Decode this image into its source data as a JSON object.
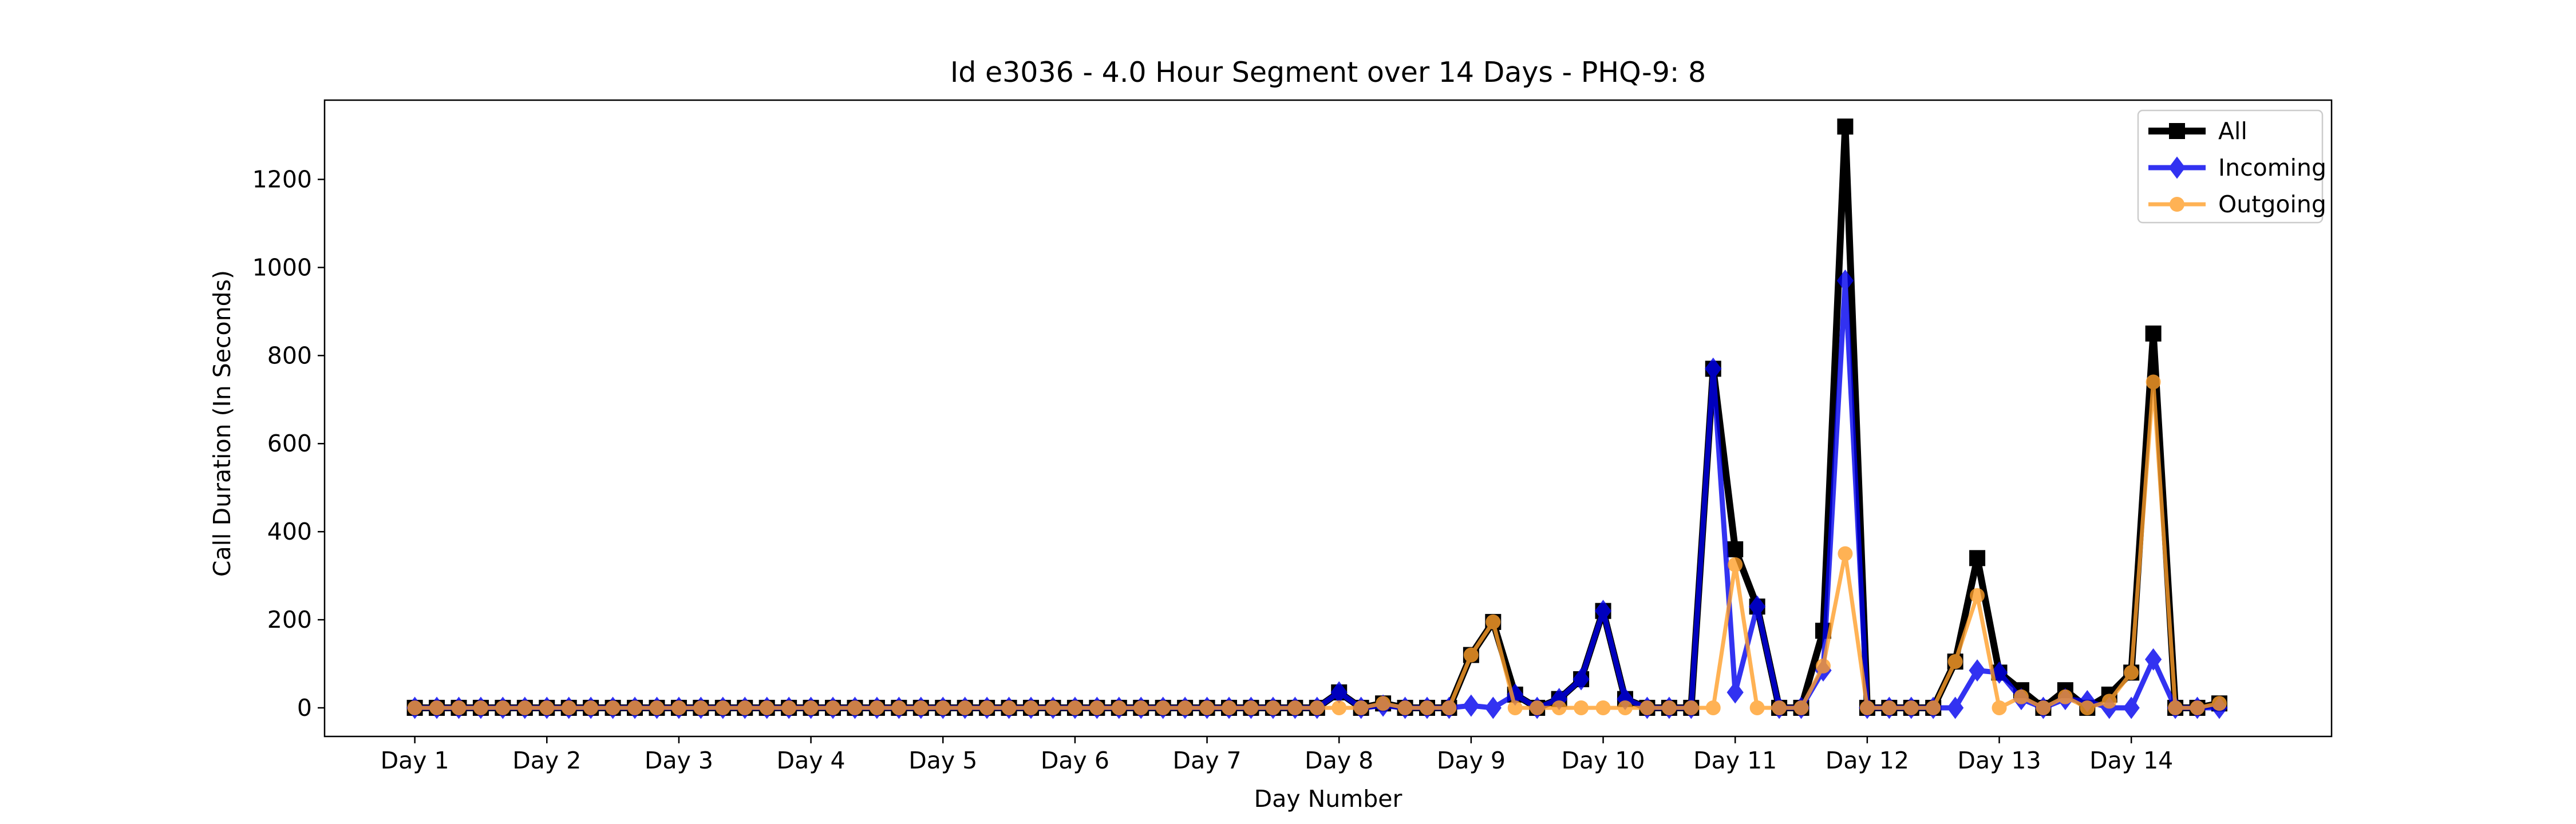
{
  "chart_data": {
    "type": "line",
    "title": "Id e3036 - 4.0 Hour Segment over 14 Days - PHQ-9: 8",
    "xlabel": "Day Number",
    "ylabel": "Call Duration (In Seconds)",
    "x_tick_labels": [
      "Day 1",
      "Day 2",
      "Day 3",
      "Day 4",
      "Day 5",
      "Day 6",
      "Day 7",
      "Day 8",
      "Day 9",
      "Day 10",
      "Day 11",
      "Day 12",
      "Day 13",
      "Day 14"
    ],
    "x_tick_positions": [
      0,
      6,
      12,
      18,
      24,
      30,
      36,
      42,
      48,
      54,
      60,
      66,
      72,
      78
    ],
    "y_ticks": [
      0,
      200,
      400,
      600,
      800,
      1000,
      1200
    ],
    "xlim": [
      -4.1,
      87.1
    ],
    "ylim": [
      -65,
      1380
    ],
    "grid": false,
    "legend_position": "top-right",
    "series": [
      {
        "name": "All",
        "color": "#000000",
        "marker": "square",
        "values": [
          0,
          0,
          0,
          0,
          0,
          0,
          0,
          0,
          0,
          0,
          0,
          0,
          0,
          0,
          0,
          0,
          0,
          0,
          0,
          0,
          0,
          0,
          0,
          0,
          0,
          0,
          0,
          0,
          0,
          0,
          0,
          0,
          0,
          0,
          0,
          0,
          0,
          0,
          0,
          0,
          0,
          0,
          35,
          0,
          10,
          0,
          0,
          0,
          120,
          195,
          30,
          0,
          20,
          65,
          220,
          20,
          0,
          0,
          0,
          770,
          360,
          230,
          0,
          0,
          175,
          1320,
          0,
          0,
          0,
          0,
          105,
          340,
          80,
          40,
          0,
          40,
          0,
          30,
          80,
          850,
          0,
          0,
          10
        ]
      },
      {
        "name": "Incoming",
        "color": "#0000ee",
        "marker": "diamond",
        "values": [
          0,
          0,
          0,
          0,
          0,
          0,
          0,
          0,
          0,
          0,
          0,
          0,
          0,
          0,
          0,
          0,
          0,
          0,
          0,
          0,
          0,
          0,
          0,
          0,
          0,
          0,
          0,
          0,
          0,
          0,
          0,
          0,
          0,
          0,
          0,
          0,
          0,
          0,
          0,
          0,
          0,
          0,
          35,
          0,
          5,
          0,
          0,
          0,
          5,
          0,
          30,
          0,
          20,
          65,
          220,
          20,
          0,
          0,
          0,
          770,
          35,
          230,
          0,
          0,
          85,
          970,
          0,
          0,
          0,
          0,
          0,
          85,
          80,
          20,
          0,
          20,
          15,
          0,
          0,
          110,
          0,
          0,
          0
        ]
      },
      {
        "name": "Outgoing",
        "color": "#ff9f2a",
        "marker": "circle",
        "values": [
          0,
          0,
          0,
          0,
          0,
          0,
          0,
          0,
          0,
          0,
          0,
          0,
          0,
          0,
          0,
          0,
          0,
          0,
          0,
          0,
          0,
          0,
          0,
          0,
          0,
          0,
          0,
          0,
          0,
          0,
          0,
          0,
          0,
          0,
          0,
          0,
          0,
          0,
          0,
          0,
          0,
          0,
          0,
          0,
          10,
          0,
          0,
          0,
          120,
          195,
          0,
          0,
          0,
          0,
          0,
          0,
          0,
          0,
          0,
          0,
          325,
          0,
          0,
          0,
          95,
          350,
          0,
          0,
          0,
          0,
          105,
          255,
          0,
          25,
          0,
          25,
          0,
          15,
          80,
          740,
          0,
          0,
          10
        ]
      }
    ]
  }
}
